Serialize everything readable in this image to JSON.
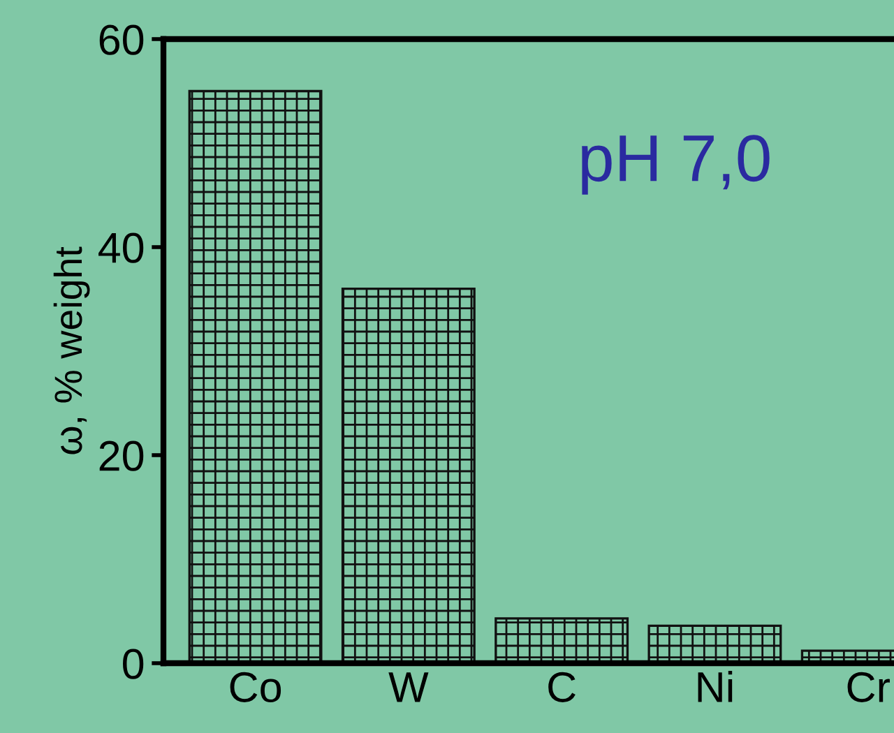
{
  "chart_data": {
    "type": "bar",
    "ylabel": "ω, % weight",
    "categories": [
      "Co",
      "W",
      "C",
      "Ni",
      "Cr"
    ],
    "values": [
      55,
      36,
      4.3,
      3.6,
      1.2
    ],
    "color": "#111111",
    "ylim": [
      0,
      60
    ],
    "yticks": [
      0,
      20,
      40,
      60
    ],
    "grid": false,
    "annotations": [
      "pH 7,0"
    ]
  }
}
